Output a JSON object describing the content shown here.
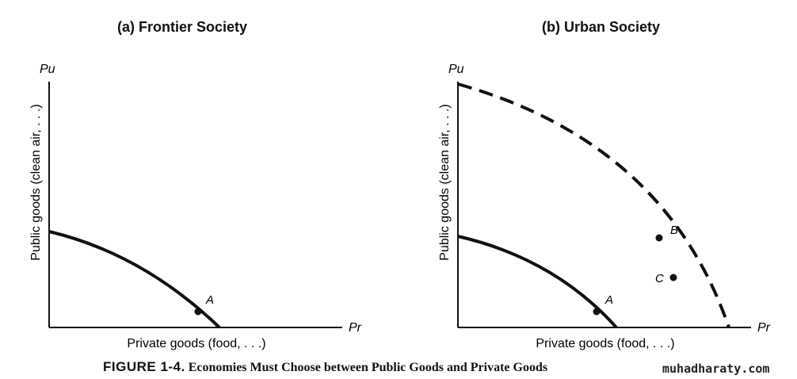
{
  "panels": [
    {
      "title": "(a) Frontier Society",
      "y_axis_letter": "Pu",
      "x_axis_letter": "Pr",
      "y_axis_label": "Public goods (clean air, . . .)",
      "x_axis_label": "Private goods (food, . . .)",
      "points": [
        "A"
      ]
    },
    {
      "title": "(b) Urban Society",
      "y_axis_letter": "Pu",
      "x_axis_letter": "Pr",
      "y_axis_label": "Public goods (clean air, . . .)",
      "x_axis_label": "Private goods (food, . . .)",
      "points": [
        "A",
        "B",
        "C"
      ]
    }
  ],
  "caption": {
    "figure_number": "FIGURE 1-4.",
    "text": "Economies Must Choose between Public Goods and Private Goods"
  },
  "watermark": "muhadharaty.com"
}
